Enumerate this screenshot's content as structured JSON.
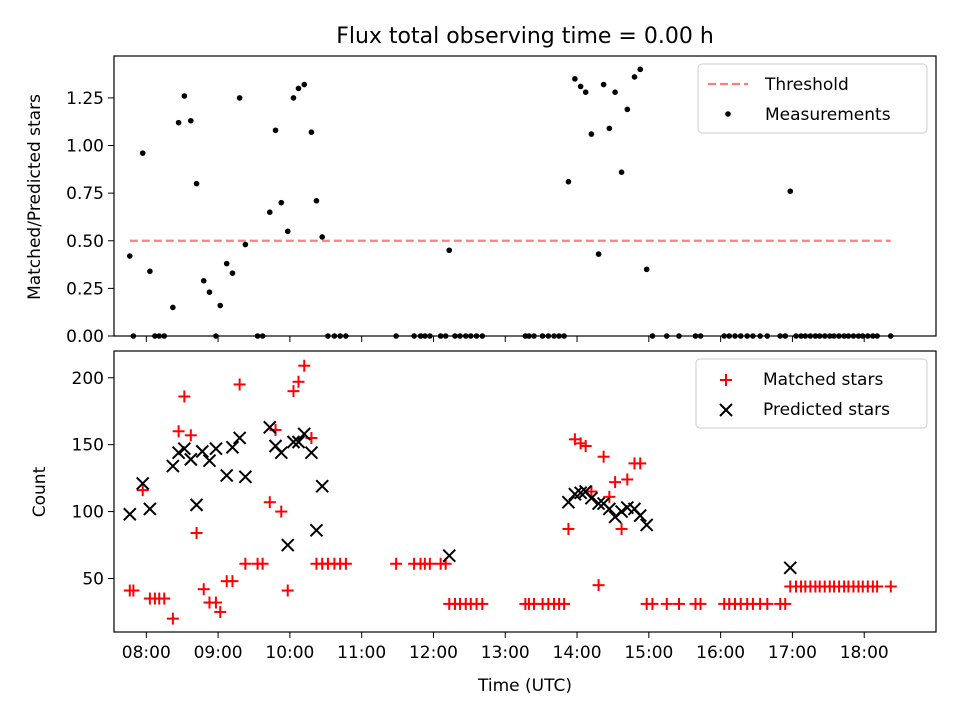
{
  "chart_data": [
    {
      "type": "scatter",
      "title": "Flux total observing time = 0.00 h",
      "xlabel": "",
      "ylabel": "Matched/Predicted stars",
      "xlim": [
        7.55,
        19.0
      ],
      "ylim": [
        0,
        1.47
      ],
      "xticks": [
        8,
        9,
        10,
        11,
        12,
        13,
        14,
        15,
        16,
        17,
        18
      ],
      "yticks": [
        0.0,
        0.25,
        0.5,
        0.75,
        1.0,
        1.25
      ],
      "ytick_labels": [
        "0.00",
        "0.25",
        "0.50",
        "0.75",
        "1.00",
        "1.25"
      ],
      "legend_position": "top-right",
      "threshold": {
        "name": "Threshold",
        "value": 0.5,
        "x_start": 7.77,
        "x_end": 18.37,
        "color": "#ff7f7f"
      },
      "series": [
        {
          "name": "Measurements",
          "color": "#000000",
          "points": [
            [
              7.77,
              0.42
            ],
            [
              7.82,
              0
            ],
            [
              7.95,
              0.96
            ],
            [
              8.05,
              0.34
            ],
            [
              8.12,
              0
            ],
            [
              8.18,
              0
            ],
            [
              8.25,
              0
            ],
            [
              8.37,
              0.15
            ],
            [
              8.45,
              1.12
            ],
            [
              8.53,
              1.26
            ],
            [
              8.62,
              1.13
            ],
            [
              8.7,
              0.8
            ],
            [
              8.8,
              0.29
            ],
            [
              8.88,
              0.23
            ],
            [
              8.97,
              0
            ],
            [
              9.03,
              0.16
            ],
            [
              9.12,
              0.38
            ],
            [
              9.2,
              0.33
            ],
            [
              9.3,
              1.25
            ],
            [
              9.38,
              0.48
            ],
            [
              9.55,
              0
            ],
            [
              9.62,
              0
            ],
            [
              9.72,
              0.65
            ],
            [
              9.8,
              1.08
            ],
            [
              9.88,
              0.7
            ],
            [
              9.97,
              0.55
            ],
            [
              10.05,
              1.25
            ],
            [
              10.12,
              1.3
            ],
            [
              10.2,
              1.32
            ],
            [
              10.3,
              1.07
            ],
            [
              10.37,
              0.71
            ],
            [
              10.45,
              0.52
            ],
            [
              10.53,
              0
            ],
            [
              10.62,
              0
            ],
            [
              10.7,
              0
            ],
            [
              10.78,
              0
            ],
            [
              11.48,
              0
            ],
            [
              11.73,
              0
            ],
            [
              11.82,
              0
            ],
            [
              11.88,
              0
            ],
            [
              11.95,
              0
            ],
            [
              12.1,
              0
            ],
            [
              12.17,
              0
            ],
            [
              12.22,
              0.45
            ],
            [
              12.3,
              0
            ],
            [
              12.37,
              0
            ],
            [
              12.45,
              0
            ],
            [
              12.52,
              0
            ],
            [
              12.6,
              0
            ],
            [
              12.68,
              0
            ],
            [
              13.28,
              0
            ],
            [
              13.33,
              0
            ],
            [
              13.4,
              0
            ],
            [
              13.52,
              0
            ],
            [
              13.6,
              0
            ],
            [
              13.68,
              0
            ],
            [
              13.75,
              0
            ],
            [
              13.82,
              0
            ],
            [
              13.88,
              0.81
            ],
            [
              13.97,
              1.35
            ],
            [
              14.05,
              1.31
            ],
            [
              14.12,
              1.28
            ],
            [
              14.2,
              1.06
            ],
            [
              14.3,
              0.43
            ],
            [
              14.37,
              1.32
            ],
            [
              14.45,
              1.09
            ],
            [
              14.53,
              1.28
            ],
            [
              14.62,
              0.86
            ],
            [
              14.7,
              1.19
            ],
            [
              14.8,
              1.36
            ],
            [
              14.88,
              1.4
            ],
            [
              14.97,
              0.35
            ],
            [
              15.05,
              0
            ],
            [
              15.25,
              0
            ],
            [
              15.42,
              0
            ],
            [
              15.65,
              0
            ],
            [
              15.72,
              0
            ],
            [
              16.05,
              0
            ],
            [
              16.12,
              0
            ],
            [
              16.2,
              0
            ],
            [
              16.28,
              0
            ],
            [
              16.37,
              0
            ],
            [
              16.45,
              0
            ],
            [
              16.55,
              0
            ],
            [
              16.65,
              0
            ],
            [
              16.83,
              0
            ],
            [
              16.9,
              0
            ],
            [
              16.97,
              0.76
            ],
            [
              17.05,
              0
            ],
            [
              17.12,
              0
            ],
            [
              17.18,
              0
            ],
            [
              17.25,
              0
            ],
            [
              17.32,
              0
            ],
            [
              17.38,
              0
            ],
            [
              17.45,
              0
            ],
            [
              17.52,
              0
            ],
            [
              17.58,
              0
            ],
            [
              17.65,
              0
            ],
            [
              17.72,
              0
            ],
            [
              17.78,
              0
            ],
            [
              17.85,
              0
            ],
            [
              17.92,
              0
            ],
            [
              17.98,
              0
            ],
            [
              18.05,
              0
            ],
            [
              18.12,
              0
            ],
            [
              18.18,
              0
            ],
            [
              18.37,
              0
            ]
          ]
        }
      ]
    },
    {
      "type": "scatter",
      "title": "",
      "xlabel": "Time (UTC)",
      "ylabel": "Count",
      "xlim": [
        7.55,
        19.0
      ],
      "ylim": [
        10,
        220
      ],
      "xticks": [
        8,
        9,
        10,
        11,
        12,
        13,
        14,
        15,
        16,
        17,
        18
      ],
      "xtick_labels": [
        "08:00",
        "09:00",
        "10:00",
        "11:00",
        "12:00",
        "13:00",
        "14:00",
        "15:00",
        "16:00",
        "17:00",
        "18:00"
      ],
      "yticks": [
        50,
        100,
        150,
        200
      ],
      "ytick_labels": [
        "50",
        "100",
        "150",
        "200"
      ],
      "legend_position": "top-right",
      "series": [
        {
          "name": "Matched stars",
          "marker": "+",
          "color": "#ff0000",
          "points": [
            [
              7.77,
              41
            ],
            [
              7.82,
              41
            ],
            [
              7.95,
              116
            ],
            [
              8.05,
              35
            ],
            [
              8.12,
              35
            ],
            [
              8.18,
              35
            ],
            [
              8.25,
              35
            ],
            [
              8.37,
              20
            ],
            [
              8.45,
              160
            ],
            [
              8.53,
              186
            ],
            [
              8.62,
              157
            ],
            [
              8.7,
              84
            ],
            [
              8.8,
              42
            ],
            [
              8.88,
              32
            ],
            [
              8.97,
              32
            ],
            [
              9.03,
              25
            ],
            [
              9.12,
              48
            ],
            [
              9.2,
              48
            ],
            [
              9.3,
              195
            ],
            [
              9.38,
              61
            ],
            [
              9.55,
              61
            ],
            [
              9.62,
              61
            ],
            [
              9.72,
              107
            ],
            [
              9.8,
              161
            ],
            [
              9.88,
              100
            ],
            [
              9.97,
              41
            ],
            [
              10.05,
              190
            ],
            [
              10.12,
              197
            ],
            [
              10.2,
              209
            ],
            [
              10.3,
              155
            ],
            [
              10.37,
              61
            ],
            [
              10.45,
              61
            ],
            [
              10.53,
              61
            ],
            [
              10.62,
              61
            ],
            [
              10.7,
              61
            ],
            [
              10.78,
              61
            ],
            [
              11.48,
              61
            ],
            [
              11.73,
              61
            ],
            [
              11.82,
              61
            ],
            [
              11.88,
              61
            ],
            [
              11.95,
              61
            ],
            [
              12.1,
              61
            ],
            [
              12.17,
              61
            ],
            [
              12.22,
              31
            ],
            [
              12.3,
              31
            ],
            [
              12.37,
              31
            ],
            [
              12.45,
              31
            ],
            [
              12.52,
              31
            ],
            [
              12.6,
              31
            ],
            [
              12.68,
              31
            ],
            [
              13.28,
              31
            ],
            [
              13.33,
              31
            ],
            [
              13.4,
              31
            ],
            [
              13.52,
              31
            ],
            [
              13.6,
              31
            ],
            [
              13.68,
              31
            ],
            [
              13.75,
              31
            ],
            [
              13.82,
              31
            ],
            [
              13.88,
              87
            ],
            [
              13.97,
              154
            ],
            [
              14.05,
              151
            ],
            [
              14.12,
              149
            ],
            [
              14.2,
              115
            ],
            [
              14.3,
              45
            ],
            [
              14.37,
              141
            ],
            [
              14.45,
              111
            ],
            [
              14.53,
              122
            ],
            [
              14.62,
              87
            ],
            [
              14.7,
              124
            ],
            [
              14.8,
              136
            ],
            [
              14.88,
              136
            ],
            [
              14.97,
              31
            ],
            [
              15.05,
              31
            ],
            [
              15.25,
              31
            ],
            [
              15.42,
              31
            ],
            [
              15.65,
              31
            ],
            [
              15.72,
              31
            ],
            [
              16.05,
              31
            ],
            [
              16.12,
              31
            ],
            [
              16.2,
              31
            ],
            [
              16.28,
              31
            ],
            [
              16.37,
              31
            ],
            [
              16.45,
              31
            ],
            [
              16.55,
              31
            ],
            [
              16.65,
              31
            ],
            [
              16.83,
              31
            ],
            [
              16.9,
              31
            ],
            [
              16.97,
              44
            ],
            [
              17.05,
              44
            ],
            [
              17.12,
              44
            ],
            [
              17.18,
              44
            ],
            [
              17.25,
              44
            ],
            [
              17.32,
              44
            ],
            [
              17.38,
              44
            ],
            [
              17.45,
              44
            ],
            [
              17.52,
              44
            ],
            [
              17.58,
              44
            ],
            [
              17.65,
              44
            ],
            [
              17.72,
              44
            ],
            [
              17.78,
              44
            ],
            [
              17.85,
              44
            ],
            [
              17.92,
              44
            ],
            [
              17.98,
              44
            ],
            [
              18.05,
              44
            ],
            [
              18.12,
              44
            ],
            [
              18.18,
              44
            ],
            [
              18.37,
              44
            ]
          ]
        },
        {
          "name": "Predicted stars",
          "marker": "x",
          "color": "#000000",
          "points": [
            [
              7.77,
              98
            ],
            [
              7.95,
              121
            ],
            [
              8.05,
              102
            ],
            [
              8.37,
              134
            ],
            [
              8.45,
              144
            ],
            [
              8.53,
              147
            ],
            [
              8.62,
              139
            ],
            [
              8.7,
              105
            ],
            [
              8.78,
              145
            ],
            [
              8.88,
              138
            ],
            [
              8.97,
              147
            ],
            [
              9.12,
              127
            ],
            [
              9.2,
              148
            ],
            [
              9.3,
              155
            ],
            [
              9.38,
              126
            ],
            [
              9.72,
              163
            ],
            [
              9.8,
              149
            ],
            [
              9.88,
              144
            ],
            [
              9.97,
              75
            ],
            [
              10.05,
              152
            ],
            [
              10.12,
              152
            ],
            [
              10.2,
              158
            ],
            [
              10.3,
              144
            ],
            [
              10.37,
              86
            ],
            [
              10.45,
              119
            ],
            [
              12.22,
              67
            ],
            [
              13.88,
              107
            ],
            [
              13.97,
              113
            ],
            [
              14.05,
              114
            ],
            [
              14.12,
              115
            ],
            [
              14.2,
              110
            ],
            [
              14.3,
              106
            ],
            [
              14.37,
              106
            ],
            [
              14.45,
              102
            ],
            [
              14.53,
              96
            ],
            [
              14.62,
              100
            ],
            [
              14.7,
              103
            ],
            [
              14.8,
              102
            ],
            [
              14.88,
              97
            ],
            [
              14.97,
              90
            ],
            [
              16.97,
              58
            ]
          ]
        }
      ]
    }
  ]
}
